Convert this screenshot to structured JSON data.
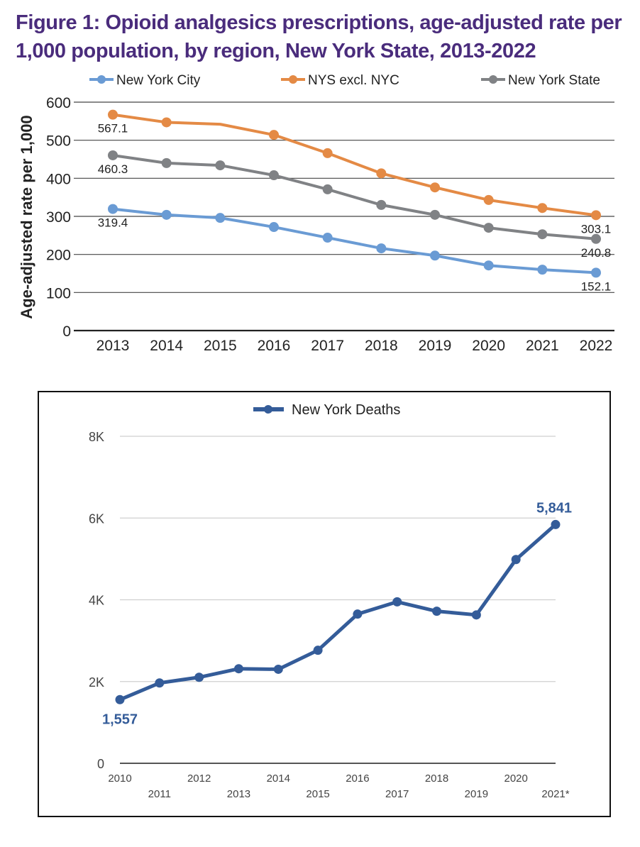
{
  "chart_data": [
    {
      "type": "line",
      "title": "Figure 1: Opioid analgesics prescriptions, age-adjusted rate per 1,000 population, by region, New York State, 2013-2022",
      "xlabel": "",
      "ylabel": "Age-adjusted rate per 1,000",
      "ylim": [
        0,
        600
      ],
      "yticks": [
        "0",
        "100",
        "200",
        "300",
        "400",
        "500",
        "600"
      ],
      "grid": true,
      "legend_position": "top",
      "categories": [
        "2013",
        "2014",
        "2015",
        "2016",
        "2017",
        "2018",
        "2019",
        "2020",
        "2021",
        "2022"
      ],
      "series": [
        {
          "name": "New York City",
          "color": "#6a9bd4",
          "values": [
            319.4,
            304,
            296,
            272,
            244,
            216,
            197,
            171,
            160,
            152.1
          ],
          "labels": {
            "0": "319.4",
            "9": "152.1"
          }
        },
        {
          "name": "NYS excl. NYC",
          "color": "#e48a45",
          "values": [
            567.1,
            547,
            542,
            514,
            466,
            413,
            376,
            343,
            322,
            303.1
          ],
          "labels": {
            "0": "567.1",
            "9": "303.1"
          },
          "hidden_markers": [
            2
          ]
        },
        {
          "name": "New York State",
          "color": "#808285",
          "values": [
            460.3,
            440,
            434,
            408,
            371,
            330,
            304,
            270,
            253,
            240.8
          ],
          "labels": {
            "0": "460.3",
            "9": "240.8"
          }
        }
      ]
    },
    {
      "type": "line",
      "title": "",
      "xlabel": "",
      "ylabel": "",
      "ylim": [
        0,
        8000
      ],
      "yticks": [
        "0",
        "2K",
        "4K",
        "6K",
        "8K"
      ],
      "grid": true,
      "legend_position": "top",
      "categories": [
        "2010",
        "2011",
        "2012",
        "2013",
        "2014",
        "2015",
        "2016",
        "2017",
        "2018",
        "2019",
        "2020",
        "2021*"
      ],
      "series": [
        {
          "name": "New York Deaths",
          "color": "#345c99",
          "values": [
            1557,
            1965,
            2104,
            2313,
            2300,
            2765,
            3650,
            3950,
            3720,
            3630,
            4985,
            5841
          ],
          "labels": {
            "0": "1,557",
            "11": "5,841"
          }
        }
      ]
    }
  ]
}
